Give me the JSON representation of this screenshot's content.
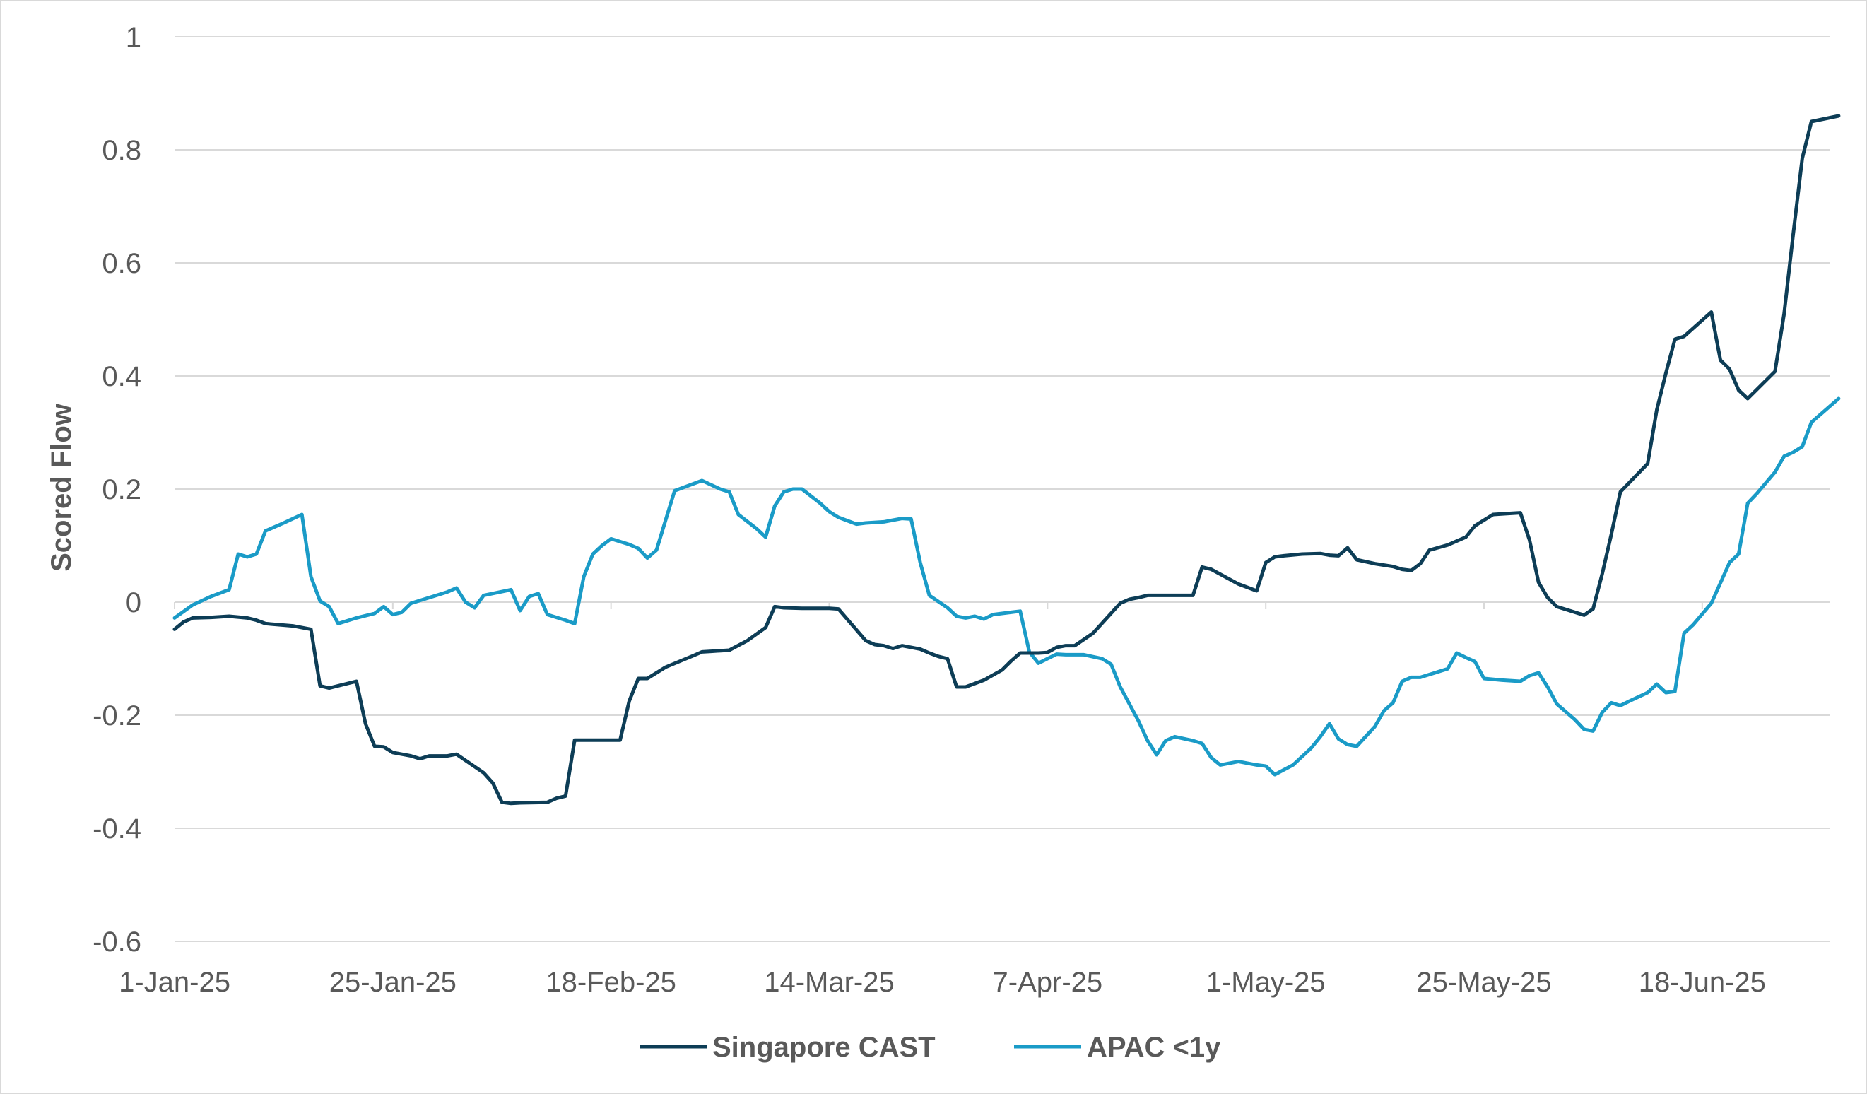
{
  "chart_data": {
    "type": "line",
    "title": "",
    "xlabel": "",
    "ylabel": "Scored Flow",
    "ylim": [
      -0.6,
      1
    ],
    "yticks": [
      -0.6,
      -0.4,
      -0.2,
      0,
      0.2,
      0.4,
      0.6,
      0.8,
      1
    ],
    "ytick_labels": [
      "-0.6",
      "-0.4",
      "-0.2",
      "0",
      "0.2",
      "0.4",
      "0.6",
      "0.8",
      "1"
    ],
    "xlim": [
      "2025-01-01",
      "2025-07-02"
    ],
    "xticks": [
      "2025-01-01",
      "2025-01-25",
      "2025-02-18",
      "2025-03-14",
      "2025-04-07",
      "2025-05-01",
      "2025-05-25",
      "2025-06-18"
    ],
    "xtick_labels": [
      "1-Jan-25",
      "25-Jan-25",
      "18-Feb-25",
      "14-Mar-25",
      "7-Apr-25",
      "1-May-25",
      "25-May-25",
      "18-Jun-25"
    ],
    "grid": "horizontal",
    "legend_position": "bottom",
    "series": [
      {
        "name": "Singapore CAST",
        "color": "#0d3d56",
        "points": [
          [
            "2025-01-01",
            -0.048
          ],
          [
            "2025-01-02",
            -0.035
          ],
          [
            "2025-01-03",
            -0.028
          ],
          [
            "2025-01-05",
            -0.027
          ],
          [
            "2025-01-07",
            -0.025
          ],
          [
            "2025-01-09",
            -0.028
          ],
          [
            "2025-01-10",
            -0.032
          ],
          [
            "2025-01-11",
            -0.038
          ],
          [
            "2025-01-14",
            -0.042
          ],
          [
            "2025-01-16",
            -0.048
          ],
          [
            "2025-01-17",
            -0.148
          ],
          [
            "2025-01-18",
            -0.152
          ],
          [
            "2025-01-21",
            -0.14
          ],
          [
            "2025-01-22",
            -0.215
          ],
          [
            "2025-01-23",
            -0.255
          ],
          [
            "2025-01-24",
            -0.256
          ],
          [
            "2025-01-25",
            -0.266
          ],
          [
            "2025-01-27",
            -0.272
          ],
          [
            "2025-01-28",
            -0.277
          ],
          [
            "2025-01-29",
            -0.272
          ],
          [
            "2025-01-31",
            -0.272
          ],
          [
            "2025-02-01",
            -0.269
          ],
          [
            "2025-02-04",
            -0.302
          ],
          [
            "2025-02-05",
            -0.32
          ],
          [
            "2025-02-06",
            -0.354
          ],
          [
            "2025-02-07",
            -0.356
          ],
          [
            "2025-02-08",
            -0.355
          ],
          [
            "2025-02-11",
            -0.354
          ],
          [
            "2025-02-12",
            -0.347
          ],
          [
            "2025-02-13",
            -0.343
          ],
          [
            "2025-02-14",
            -0.244
          ],
          [
            "2025-02-19",
            -0.244
          ],
          [
            "2025-02-20",
            -0.175
          ],
          [
            "2025-02-21",
            -0.135
          ],
          [
            "2025-02-22",
            -0.135
          ],
          [
            "2025-02-24",
            -0.115
          ],
          [
            "2025-02-27",
            -0.095
          ],
          [
            "2025-02-28",
            -0.088
          ],
          [
            "2025-03-01",
            -0.087
          ],
          [
            "2025-03-03",
            -0.085
          ],
          [
            "2025-03-05",
            -0.068
          ],
          [
            "2025-03-07",
            -0.045
          ],
          [
            "2025-03-08",
            -0.008
          ],
          [
            "2025-03-09",
            -0.01
          ],
          [
            "2025-03-11",
            -0.011
          ],
          [
            "2025-03-13",
            -0.011
          ],
          [
            "2025-03-14",
            -0.011
          ],
          [
            "2025-03-15",
            -0.012
          ],
          [
            "2025-03-18",
            -0.068
          ],
          [
            "2025-03-19",
            -0.075
          ],
          [
            "2025-03-20",
            -0.077
          ],
          [
            "2025-03-21",
            -0.082
          ],
          [
            "2025-03-22",
            -0.077
          ],
          [
            "2025-03-24",
            -0.083
          ],
          [
            "2025-03-25",
            -0.09
          ],
          [
            "2025-03-26",
            -0.096
          ],
          [
            "2025-03-27",
            -0.1
          ],
          [
            "2025-03-28",
            -0.15
          ],
          [
            "2025-03-29",
            -0.15
          ],
          [
            "2025-03-31",
            -0.138
          ],
          [
            "2025-04-02",
            -0.12
          ],
          [
            "2025-04-03",
            -0.104
          ],
          [
            "2025-04-04",
            -0.09
          ],
          [
            "2025-04-06",
            -0.09
          ],
          [
            "2025-04-07",
            -0.089
          ],
          [
            "2025-04-08",
            -0.08
          ],
          [
            "2025-04-09",
            -0.077
          ],
          [
            "2025-04-10",
            -0.077
          ],
          [
            "2025-04-12",
            -0.055
          ],
          [
            "2025-04-15",
            -0.002
          ],
          [
            "2025-04-16",
            0.005
          ],
          [
            "2025-04-17",
            0.008
          ],
          [
            "2025-04-18",
            0.012
          ],
          [
            "2025-04-21",
            0.012
          ],
          [
            "2025-04-23",
            0.012
          ],
          [
            "2025-04-24",
            0.062
          ],
          [
            "2025-04-25",
            0.058
          ],
          [
            "2025-04-28",
            0.032
          ],
          [
            "2025-04-30",
            0.02
          ],
          [
            "2025-05-01",
            0.07
          ],
          [
            "2025-05-02",
            0.08
          ],
          [
            "2025-05-03",
            0.082
          ],
          [
            "2025-05-05",
            0.085
          ],
          [
            "2025-05-07",
            0.086
          ],
          [
            "2025-05-08",
            0.083
          ],
          [
            "2025-05-09",
            0.082
          ],
          [
            "2025-05-10",
            0.096
          ],
          [
            "2025-05-11",
            0.075
          ],
          [
            "2025-05-13",
            0.068
          ],
          [
            "2025-05-15",
            0.063
          ],
          [
            "2025-05-16",
            0.058
          ],
          [
            "2025-05-17",
            0.056
          ],
          [
            "2025-05-18",
            0.068
          ],
          [
            "2025-05-19",
            0.092
          ],
          [
            "2025-05-21",
            0.101
          ],
          [
            "2025-05-23",
            0.115
          ],
          [
            "2025-05-24",
            0.135
          ],
          [
            "2025-05-25",
            0.145
          ],
          [
            "2025-05-26",
            0.155
          ],
          [
            "2025-05-28",
            0.157
          ],
          [
            "2025-05-29",
            0.158
          ],
          [
            "2025-05-30",
            0.11
          ],
          [
            "2025-05-31",
            0.035
          ],
          [
            "2025-06-01",
            0.008
          ],
          [
            "2025-06-02",
            -0.008
          ],
          [
            "2025-06-05",
            -0.023
          ],
          [
            "2025-06-06",
            -0.012
          ],
          [
            "2025-06-07",
            0.05
          ],
          [
            "2025-06-08",
            0.12
          ],
          [
            "2025-06-09",
            0.195
          ],
          [
            "2025-06-12",
            0.245
          ],
          [
            "2025-06-13",
            0.34
          ],
          [
            "2025-06-14",
            0.405
          ],
          [
            "2025-06-15",
            0.465
          ],
          [
            "2025-06-16",
            0.47
          ],
          [
            "2025-06-19",
            0.513
          ],
          [
            "2025-06-20",
            0.428
          ],
          [
            "2025-06-21",
            0.412
          ],
          [
            "2025-06-22",
            0.375
          ],
          [
            "2025-06-23",
            0.36
          ],
          [
            "2025-06-26",
            0.408
          ],
          [
            "2025-06-27",
            0.51
          ],
          [
            "2025-06-28",
            0.65
          ],
          [
            "2025-06-29",
            0.785
          ],
          [
            "2025-06-30",
            0.85
          ],
          [
            "2025-07-03",
            0.86
          ]
        ]
      },
      {
        "name": "APAC <1y",
        "color": "#1a9bc7",
        "points": [
          [
            "2025-01-01",
            -0.028
          ],
          [
            "2025-01-03",
            -0.005
          ],
          [
            "2025-01-05",
            0.01
          ],
          [
            "2025-01-07",
            0.022
          ],
          [
            "2025-01-08",
            0.085
          ],
          [
            "2025-01-09",
            0.08
          ],
          [
            "2025-01-10",
            0.085
          ],
          [
            "2025-01-11",
            0.126
          ],
          [
            "2025-01-13",
            0.14
          ],
          [
            "2025-01-15",
            0.155
          ],
          [
            "2025-01-16",
            0.045
          ],
          [
            "2025-01-17",
            0.002
          ],
          [
            "2025-01-18",
            -0.008
          ],
          [
            "2025-01-19",
            -0.038
          ],
          [
            "2025-01-21",
            -0.028
          ],
          [
            "2025-01-23",
            -0.02
          ],
          [
            "2025-01-24",
            -0.008
          ],
          [
            "2025-01-25",
            -0.022
          ],
          [
            "2025-01-26",
            -0.018
          ],
          [
            "2025-01-27",
            -0.002
          ],
          [
            "2025-01-29",
            0.008
          ],
          [
            "2025-01-31",
            0.018
          ],
          [
            "2025-02-01",
            0.025
          ],
          [
            "2025-02-02",
            0.0
          ],
          [
            "2025-02-03",
            -0.01
          ],
          [
            "2025-02-04",
            0.012
          ],
          [
            "2025-02-07",
            0.022
          ],
          [
            "2025-02-08",
            -0.015
          ],
          [
            "2025-02-09",
            0.01
          ],
          [
            "2025-02-10",
            0.015
          ],
          [
            "2025-02-11",
            -0.022
          ],
          [
            "2025-02-13",
            -0.032
          ],
          [
            "2025-02-14",
            -0.038
          ],
          [
            "2025-02-15",
            0.045
          ],
          [
            "2025-02-16",
            0.085
          ],
          [
            "2025-02-17",
            0.1
          ],
          [
            "2025-02-18",
            0.112
          ],
          [
            "2025-02-20",
            0.102
          ],
          [
            "2025-02-21",
            0.095
          ],
          [
            "2025-02-22",
            0.078
          ],
          [
            "2025-02-23",
            0.092
          ],
          [
            "2025-02-24",
            0.145
          ],
          [
            "2025-02-25",
            0.197
          ],
          [
            "2025-02-28",
            0.215
          ],
          [
            "2025-03-02",
            0.2
          ],
          [
            "2025-03-03",
            0.195
          ],
          [
            "2025-03-04",
            0.155
          ],
          [
            "2025-03-06",
            0.13
          ],
          [
            "2025-03-07",
            0.115
          ],
          [
            "2025-03-08",
            0.17
          ],
          [
            "2025-03-09",
            0.195
          ],
          [
            "2025-03-10",
            0.2
          ],
          [
            "2025-03-11",
            0.2
          ],
          [
            "2025-03-13",
            0.175
          ],
          [
            "2025-03-14",
            0.16
          ],
          [
            "2025-03-15",
            0.15
          ],
          [
            "2025-03-17",
            0.138
          ],
          [
            "2025-03-18",
            0.14
          ],
          [
            "2025-03-20",
            0.142
          ],
          [
            "2025-03-21",
            0.145
          ],
          [
            "2025-03-22",
            0.148
          ],
          [
            "2025-03-23",
            0.147
          ],
          [
            "2025-03-24",
            0.07
          ],
          [
            "2025-03-25",
            0.012
          ],
          [
            "2025-03-27",
            -0.01
          ],
          [
            "2025-03-28",
            -0.025
          ],
          [
            "2025-03-29",
            -0.028
          ],
          [
            "2025-03-30",
            -0.025
          ],
          [
            "2025-03-31",
            -0.03
          ],
          [
            "2025-04-01",
            -0.022
          ],
          [
            "2025-04-02",
            -0.02
          ],
          [
            "2025-04-03",
            -0.018
          ],
          [
            "2025-04-04",
            -0.016
          ],
          [
            "2025-04-05",
            -0.088
          ],
          [
            "2025-04-06",
            -0.108
          ],
          [
            "2025-04-07",
            -0.1
          ],
          [
            "2025-04-08",
            -0.092
          ],
          [
            "2025-04-09",
            -0.093
          ],
          [
            "2025-04-11",
            -0.093
          ],
          [
            "2025-04-13",
            -0.1
          ],
          [
            "2025-04-14",
            -0.11
          ],
          [
            "2025-04-15",
            -0.15
          ],
          [
            "2025-04-17",
            -0.21
          ],
          [
            "2025-04-18",
            -0.245
          ],
          [
            "2025-04-19",
            -0.27
          ],
          [
            "2025-04-20",
            -0.245
          ],
          [
            "2025-04-21",
            -0.238
          ],
          [
            "2025-04-23",
            -0.245
          ],
          [
            "2025-04-24",
            -0.25
          ],
          [
            "2025-04-25",
            -0.275
          ],
          [
            "2025-04-26",
            -0.288
          ],
          [
            "2025-04-28",
            -0.282
          ],
          [
            "2025-04-30",
            -0.288
          ],
          [
            "2025-05-01",
            -0.29
          ],
          [
            "2025-05-02",
            -0.305
          ],
          [
            "2025-05-04",
            -0.288
          ],
          [
            "2025-05-06",
            -0.258
          ],
          [
            "2025-05-07",
            -0.238
          ],
          [
            "2025-05-08",
            -0.215
          ],
          [
            "2025-05-09",
            -0.242
          ],
          [
            "2025-05-10",
            -0.252
          ],
          [
            "2025-05-11",
            -0.255
          ],
          [
            "2025-05-13",
            -0.22
          ],
          [
            "2025-05-14",
            -0.192
          ],
          [
            "2025-05-15",
            -0.178
          ],
          [
            "2025-05-16",
            -0.14
          ],
          [
            "2025-05-17",
            -0.133
          ],
          [
            "2025-05-18",
            -0.133
          ],
          [
            "2025-05-19",
            -0.128
          ],
          [
            "2025-05-21",
            -0.118
          ],
          [
            "2025-05-22",
            -0.09
          ],
          [
            "2025-05-23",
            -0.098
          ],
          [
            "2025-05-24",
            -0.105
          ],
          [
            "2025-05-25",
            -0.135
          ],
          [
            "2025-05-27",
            -0.138
          ],
          [
            "2025-05-29",
            -0.14
          ],
          [
            "2025-05-30",
            -0.13
          ],
          [
            "2025-05-31",
            -0.125
          ],
          [
            "2025-06-01",
            -0.15
          ],
          [
            "2025-06-02",
            -0.18
          ],
          [
            "2025-06-04",
            -0.208
          ],
          [
            "2025-06-05",
            -0.225
          ],
          [
            "2025-06-06",
            -0.228
          ],
          [
            "2025-06-07",
            -0.195
          ],
          [
            "2025-06-08",
            -0.178
          ],
          [
            "2025-06-09",
            -0.183
          ],
          [
            "2025-06-10",
            -0.175
          ],
          [
            "2025-06-12",
            -0.16
          ],
          [
            "2025-06-13",
            -0.145
          ],
          [
            "2025-06-14",
            -0.16
          ],
          [
            "2025-06-15",
            -0.158
          ],
          [
            "2025-06-16",
            -0.055
          ],
          [
            "2025-06-17",
            -0.04
          ],
          [
            "2025-06-19",
            -0.002
          ],
          [
            "2025-06-21",
            0.07
          ],
          [
            "2025-06-22",
            0.085
          ],
          [
            "2025-06-23",
            0.175
          ],
          [
            "2025-06-24",
            0.192
          ],
          [
            "2025-06-26",
            0.23
          ],
          [
            "2025-06-27",
            0.258
          ],
          [
            "2025-06-28",
            0.265
          ],
          [
            "2025-06-29",
            0.275
          ],
          [
            "2025-06-30",
            0.318
          ],
          [
            "2025-07-03",
            0.36
          ]
        ]
      }
    ]
  }
}
